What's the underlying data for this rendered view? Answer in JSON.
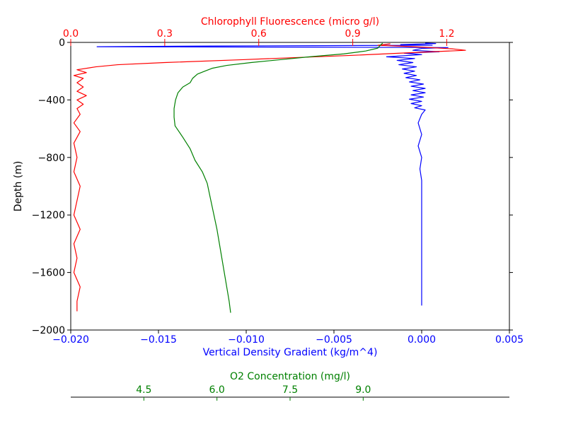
{
  "chart_data": {
    "type": "line",
    "title": "",
    "colors": {
      "density": "#0000ff",
      "chlorophyll": "#ff0000",
      "oxygen": "#008000",
      "axes": "#000000"
    },
    "grid": false,
    "legend": "none",
    "y_axis": {
      "label": "Depth (m)",
      "ylim": [
        -2000,
        0
      ],
      "ticks": [
        0,
        -400,
        -800,
        -1200,
        -1600,
        -2000
      ],
      "tick_labels": [
        "0",
        "−400",
        "−800",
        "−1200",
        "−1600",
        "−2000"
      ]
    },
    "x_axes": [
      {
        "id": "density",
        "position": "bottom",
        "label": "Vertical Density Gradient (kg/m^4)",
        "color": "#0000ff",
        "xlim": [
          -0.02,
          0.005
        ],
        "ticks": [
          -0.02,
          -0.015,
          -0.01,
          -0.005,
          0.0,
          0.005
        ],
        "tick_labels": [
          "−0.020",
          "−0.015",
          "−0.010",
          "−0.005",
          "0.000",
          "0.005"
        ]
      },
      {
        "id": "chlorophyll",
        "position": "top",
        "label": "Chlorophyll Fluorescence (micro g/l)",
        "color": "#ff0000",
        "xlim": [
          0.0,
          1.4
        ],
        "ticks": [
          0.0,
          0.3,
          0.6,
          0.9,
          1.2
        ],
        "tick_labels": [
          "0.0",
          "0.3",
          "0.6",
          "0.9",
          "1.2"
        ]
      },
      {
        "id": "oxygen",
        "position": "bottom-offset",
        "label": "O2 Concentration (mg/l)",
        "color": "#008000",
        "xlim": [
          3.0,
          12.0
        ],
        "ticks": [
          4.5,
          6.0,
          7.5,
          9.0
        ],
        "tick_labels": [
          "4.5",
          "6.0",
          "7.5",
          "9.0"
        ]
      }
    ],
    "series": [
      {
        "axis": "density",
        "points": [
          [
            0.0002,
            -5
          ],
          [
            0.0008,
            -8
          ],
          [
            -0.0012,
            -15
          ],
          [
            0.0006,
            -20
          ],
          [
            -0.012,
            -25
          ],
          [
            -0.0185,
            -30
          ],
          [
            -0.006,
            -33
          ],
          [
            0.0015,
            -36
          ],
          [
            0.0,
            -42
          ],
          [
            -0.0005,
            -55
          ],
          [
            0.001,
            -65
          ],
          [
            -0.001,
            -75
          ],
          [
            0.0,
            -85
          ],
          [
            -0.002,
            -100
          ],
          [
            -0.0004,
            -112
          ],
          [
            -0.0014,
            -125
          ],
          [
            -0.0005,
            -140
          ],
          [
            -0.0013,
            -155
          ],
          [
            -0.0003,
            -170
          ],
          [
            -0.0011,
            -185
          ],
          [
            -0.0004,
            -200
          ],
          [
            -0.001,
            -215
          ],
          [
            -0.0003,
            -230
          ],
          [
            -0.0009,
            -245
          ],
          [
            -0.0001,
            -260
          ],
          [
            -0.0007,
            -275
          ],
          [
            0.0001,
            -290
          ],
          [
            -0.0006,
            -305
          ],
          [
            0.0002,
            -320
          ],
          [
            -0.0005,
            -335
          ],
          [
            0.0002,
            -350
          ],
          [
            -0.0006,
            -365
          ],
          [
            0.0001,
            -380
          ],
          [
            -0.0007,
            -395
          ],
          [
            0.0,
            -410
          ],
          [
            -0.0006,
            -425
          ],
          [
            0.0,
            -440
          ],
          [
            -0.0004,
            -455
          ],
          [
            0.0002,
            -470
          ],
          [
            0.0,
            -500
          ],
          [
            -0.0002,
            -560
          ],
          [
            0.0,
            -640
          ],
          [
            -0.0002,
            -720
          ],
          [
            0.0,
            -800
          ],
          [
            -0.0001,
            -880
          ],
          [
            0.0,
            -960
          ],
          [
            0.0,
            -1100
          ],
          [
            0.0,
            -1300
          ],
          [
            0.0,
            -1500
          ],
          [
            0.0,
            -1700
          ],
          [
            0.0,
            -1830
          ]
        ]
      },
      {
        "axis": "chlorophyll",
        "points": [
          [
            1.02,
            -10
          ],
          [
            0.98,
            -20
          ],
          [
            1.1,
            -30
          ],
          [
            1.22,
            -45
          ],
          [
            1.26,
            -55
          ],
          [
            1.1,
            -70
          ],
          [
            0.9,
            -90
          ],
          [
            0.55,
            -120
          ],
          [
            0.3,
            -140
          ],
          [
            0.15,
            -155
          ],
          [
            0.08,
            -170
          ],
          [
            0.02,
            -190
          ],
          [
            0.05,
            -210
          ],
          [
            0.01,
            -230
          ],
          [
            0.04,
            -250
          ],
          [
            0.02,
            -280
          ],
          [
            0.04,
            -310
          ],
          [
            0.02,
            -340
          ],
          [
            0.05,
            -370
          ],
          [
            0.02,
            -400
          ],
          [
            0.04,
            -430
          ],
          [
            0.02,
            -460
          ],
          [
            0.03,
            -500
          ],
          [
            0.01,
            -560
          ],
          [
            0.03,
            -620
          ],
          [
            0.01,
            -700
          ],
          [
            0.02,
            -800
          ],
          [
            0.01,
            -900
          ],
          [
            0.03,
            -1000
          ],
          [
            0.02,
            -1100
          ],
          [
            0.01,
            -1200
          ],
          [
            0.03,
            -1300
          ],
          [
            0.01,
            -1400
          ],
          [
            0.02,
            -1500
          ],
          [
            0.01,
            -1600
          ],
          [
            0.03,
            -1700
          ],
          [
            0.02,
            -1800
          ],
          [
            0.02,
            -1870
          ]
        ]
      },
      {
        "axis": "oxygen",
        "points": [
          [
            9.4,
            -5
          ],
          [
            9.35,
            -20
          ],
          [
            9.3,
            -40
          ],
          [
            9.05,
            -60
          ],
          [
            8.6,
            -80
          ],
          [
            7.9,
            -100
          ],
          [
            7.3,
            -120
          ],
          [
            6.7,
            -140
          ],
          [
            6.2,
            -160
          ],
          [
            5.9,
            -180
          ],
          [
            5.75,
            -200
          ],
          [
            5.6,
            -220
          ],
          [
            5.5,
            -250
          ],
          [
            5.45,
            -280
          ],
          [
            5.3,
            -310
          ],
          [
            5.2,
            -350
          ],
          [
            5.15,
            -400
          ],
          [
            5.12,
            -460
          ],
          [
            5.12,
            -520
          ],
          [
            5.14,
            -580
          ],
          [
            5.3,
            -660
          ],
          [
            5.45,
            -740
          ],
          [
            5.55,
            -820
          ],
          [
            5.7,
            -900
          ],
          [
            5.8,
            -980
          ],
          [
            5.85,
            -1060
          ],
          [
            5.9,
            -1140
          ],
          [
            5.95,
            -1220
          ],
          [
            6.0,
            -1300
          ],
          [
            6.05,
            -1400
          ],
          [
            6.1,
            -1500
          ],
          [
            6.15,
            -1600
          ],
          [
            6.2,
            -1700
          ],
          [
            6.25,
            -1800
          ],
          [
            6.28,
            -1880
          ]
        ]
      }
    ]
  }
}
